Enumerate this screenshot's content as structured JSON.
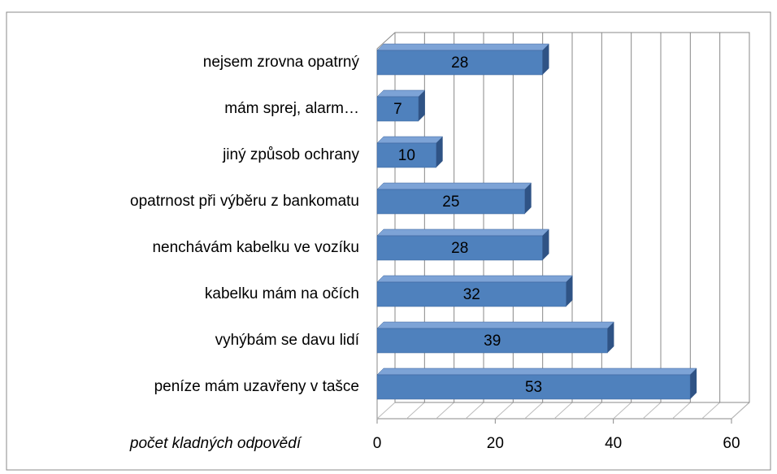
{
  "chart_data": {
    "type": "bar3d_horizontal",
    "categories": [
      "nejsem zrovna opatrný",
      "mám sprej, alarm…",
      "jiný způsob ochrany",
      "opatrnost při výběru z bankomatu",
      "nenchávám kabelku ve vozíku",
      "kabelku mám na očích",
      "vyhýbám se davu lidí",
      "peníze mám uzavřeny v tašce"
    ],
    "values": [
      28,
      7,
      10,
      25,
      28,
      32,
      39,
      53
    ],
    "color": "#4f81bd",
    "xlabel": "počet kladných odpovědí",
    "xlim": [
      0,
      60
    ],
    "xticks": [
      0,
      20,
      40,
      60
    ],
    "xgrid": [
      0,
      5,
      10,
      15,
      20,
      25,
      30,
      35,
      40,
      45,
      50,
      55,
      60
    ],
    "grid": true
  }
}
